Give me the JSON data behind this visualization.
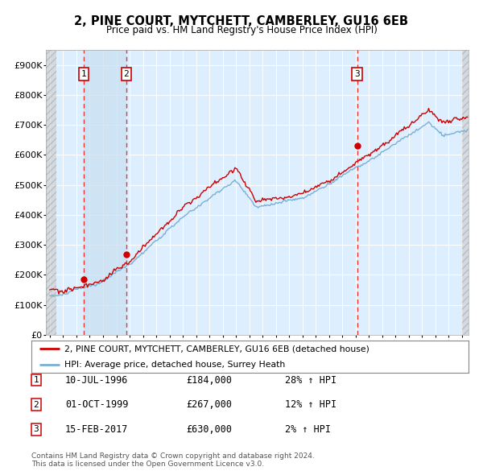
{
  "title": "2, PINE COURT, MYTCHETT, CAMBERLEY, GU16 6EB",
  "subtitle": "Price paid vs. HM Land Registry's House Price Index (HPI)",
  "ylim": [
    0,
    950000
  ],
  "yticks": [
    0,
    100000,
    200000,
    300000,
    400000,
    500000,
    600000,
    700000,
    800000,
    900000
  ],
  "ytick_labels": [
    "£0",
    "£100K",
    "£200K",
    "£300K",
    "£400K",
    "£500K",
    "£600K",
    "£700K",
    "£800K",
    "£900K"
  ],
  "xlim_start": 1993.7,
  "xlim_end": 2025.5,
  "hatch_left_end": 1994.5,
  "hatch_right_start": 2025.0,
  "highlight_start": 1996.54,
  "highlight_end": 1999.75,
  "sale_dates": [
    1996.54,
    1999.75,
    2017.12
  ],
  "sale_prices": [
    184000,
    267000,
    630000
  ],
  "sale_labels": [
    "1",
    "2",
    "3"
  ],
  "red_line_color": "#cc0000",
  "blue_line_color": "#7ab0d4",
  "dot_color": "#cc0000",
  "dashed_line_color": "#ee3333",
  "background_color": "#ffffff",
  "plot_bg_color": "#ddeeff",
  "grid_color": "#ffffff",
  "legend1_label": "2, PINE COURT, MYTCHETT, CAMBERLEY, GU16 6EB (detached house)",
  "legend2_label": "HPI: Average price, detached house, Surrey Heath",
  "table_rows": [
    [
      "1",
      "10-JUL-1996",
      "£184,000",
      "28% ↑ HPI"
    ],
    [
      "2",
      "01-OCT-1999",
      "£267,000",
      "12% ↑ HPI"
    ],
    [
      "3",
      "15-FEB-2017",
      "£630,000",
      "2% ↑ HPI"
    ]
  ],
  "footer": "Contains HM Land Registry data © Crown copyright and database right 2024.\nThis data is licensed under the Open Government Licence v3.0."
}
